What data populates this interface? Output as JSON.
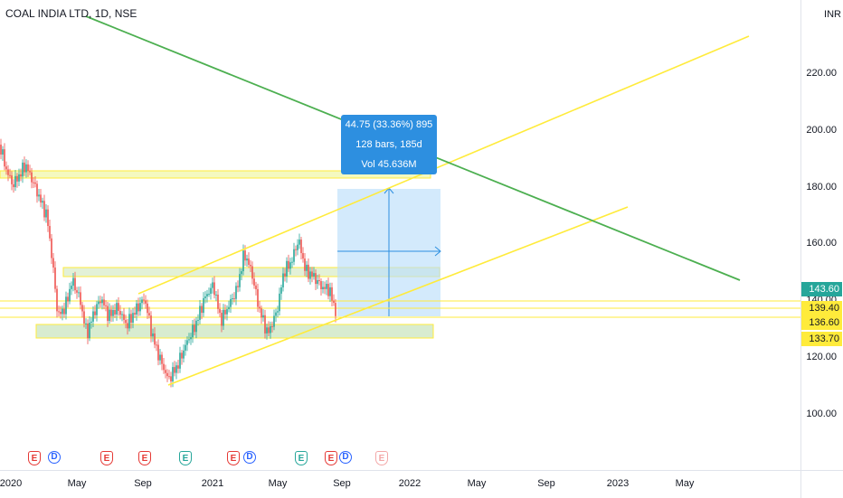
{
  "header": {
    "symbol_title": "COAL INDIA LTD, 1D, NSE"
  },
  "price_axis": {
    "unit": "INR",
    "ticks": [
      "220.00",
      "200.00",
      "180.00",
      "160.00",
      "140.00",
      "120.00",
      "100.00"
    ],
    "tags": [
      {
        "value": "143.60",
        "style": "green"
      },
      {
        "value": "139.40",
        "style": "yellow"
      },
      {
        "value": "136.60",
        "style": "yellow"
      },
      {
        "value": "133.70",
        "style": "yellow"
      }
    ]
  },
  "time_axis": {
    "labels": [
      "2020",
      "May",
      "Sep",
      "2021",
      "May",
      "Sep",
      "2022",
      "May",
      "Sep",
      "2023",
      "May"
    ]
  },
  "measure_tool": {
    "line1": "44.75 (33.36%) 895",
    "line2": "128 bars, 185d",
    "line3": "Vol 45.636M"
  },
  "events": [
    {
      "type": "E",
      "label": "E"
    },
    {
      "type": "D",
      "label": "D"
    },
    {
      "type": "E",
      "label": "E"
    },
    {
      "type": "E",
      "label": "E"
    },
    {
      "type": "S",
      "label": "E"
    },
    {
      "type": "E",
      "label": "E"
    },
    {
      "type": "D",
      "label": "D"
    },
    {
      "type": "S",
      "label": "E"
    },
    {
      "type": "E",
      "label": "E"
    },
    {
      "type": "D",
      "label": "D"
    },
    {
      "type": "faded",
      "label": "E"
    }
  ],
  "colors": {
    "up": "#26a69a",
    "down": "#ef5350",
    "trendline": "#4caf50",
    "channel": "#ffeb3b",
    "zone_fill": "#c8e6c9",
    "measure": "#2d8fe0"
  }
}
